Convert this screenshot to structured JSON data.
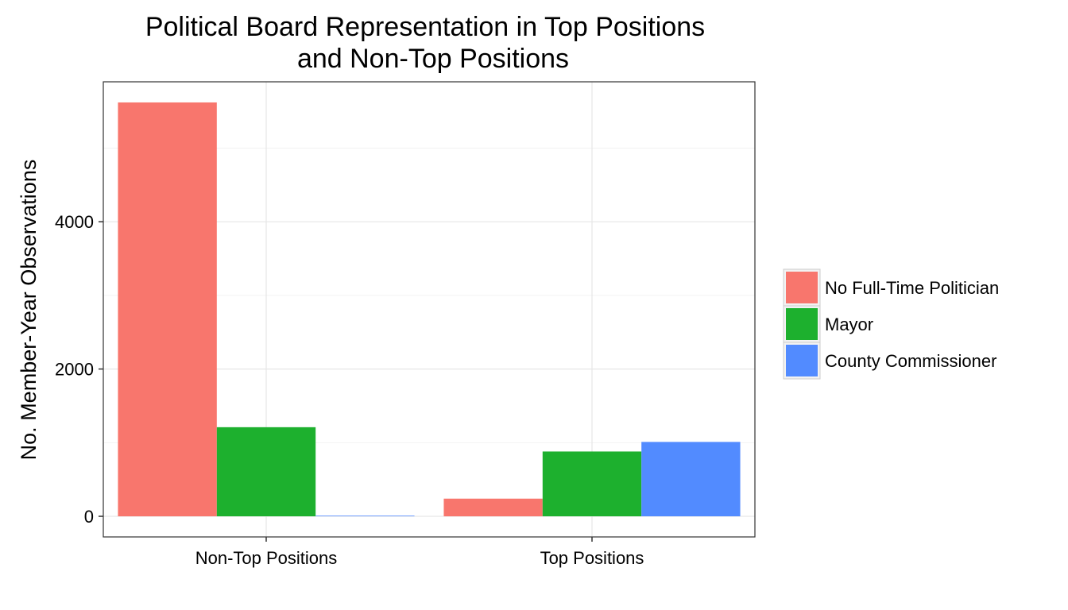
{
  "chart_data": {
    "type": "bar",
    "title_lines": [
      "Political Board Representation in Top Positions",
      "and Non-Top Positions"
    ],
    "xlabel": "",
    "ylabel": "No. Member-Year Observations",
    "categories": [
      "Non-Top Positions",
      "Top Positions"
    ],
    "series": [
      {
        "name": "No Full-Time Politician",
        "color": "#F8766D",
        "values": [
          5620,
          240
        ]
      },
      {
        "name": "Mayor",
        "color": "#1DB02E",
        "values": [
          1210,
          880
        ]
      },
      {
        "name": "County Commissioner",
        "color": "#528BFF",
        "values": [
          8,
          1010
        ]
      }
    ],
    "ylim": [
      -280,
      5900
    ],
    "yticks": [
      0,
      2000,
      4000
    ],
    "grid": true,
    "legend_position": "right"
  }
}
